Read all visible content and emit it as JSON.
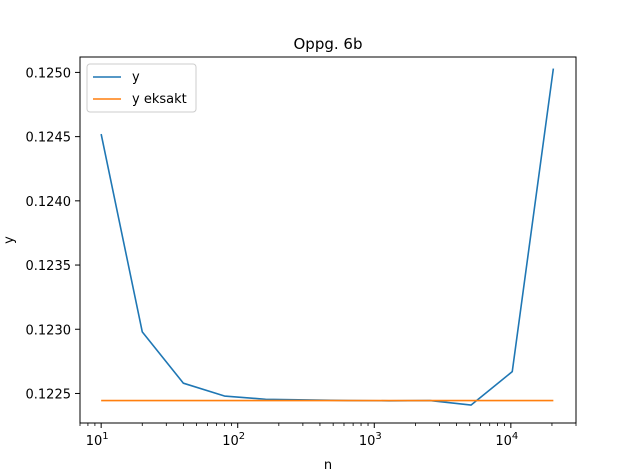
{
  "chart_data": {
    "type": "line",
    "title": "Oppg. 6b",
    "xlabel": "n",
    "ylabel": "y",
    "xscale": "log",
    "xlim": [
      7,
      30000
    ],
    "ylim": [
      0.12227,
      0.12512
    ],
    "xticks": [
      {
        "value": 10,
        "exp": "1"
      },
      {
        "value": 100,
        "exp": "2"
      },
      {
        "value": 1000,
        "exp": "3"
      },
      {
        "value": 10000,
        "exp": "4"
      }
    ],
    "yticks": [
      0.1225,
      0.123,
      0.1235,
      0.124,
      0.1245,
      0.125
    ],
    "ytick_labels": [
      "0.1225",
      "0.1230",
      "0.1235",
      "0.1240",
      "0.1245",
      "0.1250"
    ],
    "legend_position": "upper-left",
    "series": [
      {
        "name": "y",
        "color": "#1f77b4",
        "x": [
          10,
          20,
          40,
          80,
          160,
          320,
          640,
          1280,
          2560,
          5120,
          10240,
          20480
        ],
        "y": [
          0.12452,
          0.12298,
          0.12258,
          0.12248,
          0.122455,
          0.12245,
          0.122445,
          0.122443,
          0.122445,
          0.12241,
          0.12267,
          0.12503
        ]
      },
      {
        "name": "y eksakt",
        "color": "#ff7f0e",
        "x": [
          10,
          20,
          40,
          80,
          160,
          320,
          640,
          1280,
          2560,
          5120,
          10240,
          20480
        ],
        "y": [
          0.122445,
          0.122445,
          0.122445,
          0.122445,
          0.122445,
          0.122445,
          0.122445,
          0.122445,
          0.122445,
          0.122445,
          0.122445,
          0.122445
        ]
      }
    ]
  }
}
